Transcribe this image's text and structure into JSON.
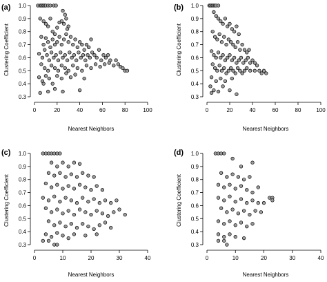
{
  "chart_data": [
    {
      "type": "scatter",
      "panel_label": "(a)",
      "xlabel": "Nearest Neighbors",
      "ylabel": "Clustering Coefficient",
      "xlim": [
        0,
        100
      ],
      "ylim": [
        0.3,
        1.0
      ],
      "xticks": [
        0,
        20,
        40,
        60,
        80,
        100
      ],
      "yticks": [
        0.3,
        0.4,
        0.5,
        0.6,
        0.7,
        0.8,
        0.9,
        1.0
      ],
      "grid": false,
      "points": [
        [
          3,
          1.0
        ],
        [
          5,
          1.0
        ],
        [
          6,
          1.0
        ],
        [
          7,
          1.0
        ],
        [
          8,
          1.0
        ],
        [
          9,
          1.0
        ],
        [
          10,
          1.0
        ],
        [
          12,
          1.0
        ],
        [
          14,
          1.0
        ],
        [
          17,
          1.0
        ],
        [
          19,
          1.0
        ],
        [
          5,
          0.9
        ],
        [
          8,
          0.88
        ],
        [
          10,
          0.86
        ],
        [
          12,
          0.84
        ],
        [
          14,
          0.9
        ],
        [
          16,
          0.8
        ],
        [
          18,
          0.78
        ],
        [
          20,
          0.83
        ],
        [
          22,
          0.87
        ],
        [
          24,
          0.88
        ],
        [
          26,
          0.86
        ],
        [
          28,
          0.9
        ],
        [
          30,
          0.84
        ],
        [
          25,
          0.96
        ],
        [
          27,
          0.93
        ],
        [
          29,
          0.82
        ],
        [
          6,
          0.76
        ],
        [
          8,
          0.7
        ],
        [
          10,
          0.75
        ],
        [
          12,
          0.72
        ],
        [
          14,
          0.68
        ],
        [
          16,
          0.74
        ],
        [
          18,
          0.7
        ],
        [
          20,
          0.72
        ],
        [
          22,
          0.76
        ],
        [
          24,
          0.7
        ],
        [
          26,
          0.74
        ],
        [
          28,
          0.78
        ],
        [
          30,
          0.72
        ],
        [
          32,
          0.76
        ],
        [
          34,
          0.7
        ],
        [
          36,
          0.74
        ],
        [
          38,
          0.68
        ],
        [
          40,
          0.72
        ],
        [
          42,
          0.7
        ],
        [
          44,
          0.66
        ],
        [
          46,
          0.7
        ],
        [
          48,
          0.68
        ],
        [
          50,
          0.74
        ],
        [
          4,
          0.63
        ],
        [
          7,
          0.6
        ],
        [
          9,
          0.66
        ],
        [
          11,
          0.62
        ],
        [
          13,
          0.58
        ],
        [
          15,
          0.64
        ],
        [
          17,
          0.6
        ],
        [
          19,
          0.62
        ],
        [
          21,
          0.58
        ],
        [
          23,
          0.64
        ],
        [
          25,
          0.6
        ],
        [
          27,
          0.62
        ],
        [
          29,
          0.58
        ],
        [
          31,
          0.64
        ],
        [
          33,
          0.6
        ],
        [
          35,
          0.62
        ],
        [
          37,
          0.58
        ],
        [
          39,
          0.64
        ],
        [
          41,
          0.6
        ],
        [
          43,
          0.62
        ],
        [
          45,
          0.58
        ],
        [
          47,
          0.62
        ],
        [
          49,
          0.6
        ],
        [
          51,
          0.64
        ],
        [
          53,
          0.62
        ],
        [
          55,
          0.6
        ],
        [
          57,
          0.66
        ],
        [
          59,
          0.58
        ],
        [
          61,
          0.62
        ],
        [
          63,
          0.6
        ],
        [
          65,
          0.62
        ],
        [
          67,
          0.58
        ],
        [
          6,
          0.55
        ],
        [
          9,
          0.52
        ],
        [
          12,
          0.5
        ],
        [
          15,
          0.54
        ],
        [
          18,
          0.52
        ],
        [
          21,
          0.5
        ],
        [
          24,
          0.54
        ],
        [
          27,
          0.52
        ],
        [
          30,
          0.5
        ],
        [
          34,
          0.54
        ],
        [
          38,
          0.52
        ],
        [
          42,
          0.5
        ],
        [
          46,
          0.54
        ],
        [
          50,
          0.52
        ],
        [
          54,
          0.55
        ],
        [
          58,
          0.53
        ],
        [
          62,
          0.55
        ],
        [
          66,
          0.56
        ],
        [
          70,
          0.54
        ],
        [
          72,
          0.58
        ],
        [
          74,
          0.55
        ],
        [
          76,
          0.53
        ],
        [
          78,
          0.52
        ],
        [
          80,
          0.5
        ],
        [
          82,
          0.5
        ],
        [
          4,
          0.45
        ],
        [
          7,
          0.42
        ],
        [
          10,
          0.46
        ],
        [
          13,
          0.44
        ],
        [
          16,
          0.4
        ],
        [
          20,
          0.46
        ],
        [
          24,
          0.44
        ],
        [
          28,
          0.48
        ],
        [
          32,
          0.45
        ],
        [
          36,
          0.47
        ],
        [
          44,
          0.44
        ],
        [
          5,
          0.33
        ],
        [
          8,
          0.4
        ],
        [
          12,
          0.34
        ],
        [
          18,
          0.36
        ],
        [
          25,
          0.34
        ],
        [
          40,
          0.35
        ]
      ]
    },
    {
      "type": "scatter",
      "panel_label": "(b)",
      "xlabel": "Nearest Neighbors",
      "ylabel": "Clustering Coefficient",
      "xlim": [
        0,
        100
      ],
      "ylim": [
        0.3,
        1.0
      ],
      "xticks": [
        0,
        20,
        40,
        60,
        80,
        100
      ],
      "yticks": [
        0.3,
        0.4,
        0.5,
        0.6,
        0.7,
        0.8,
        0.9,
        1.0
      ],
      "grid": false,
      "points": [
        [
          2,
          1.0
        ],
        [
          3,
          1.0
        ],
        [
          4,
          1.0
        ],
        [
          5,
          1.0
        ],
        [
          6,
          1.0
        ],
        [
          7,
          1.0
        ],
        [
          8,
          1.0
        ],
        [
          10,
          1.0
        ],
        [
          6,
          0.95
        ],
        [
          8,
          0.92
        ],
        [
          10,
          0.9
        ],
        [
          12,
          0.88
        ],
        [
          14,
          0.86
        ],
        [
          16,
          0.9
        ],
        [
          18,
          0.84
        ],
        [
          20,
          0.86
        ],
        [
          22,
          0.82
        ],
        [
          24,
          0.8
        ],
        [
          26,
          0.84
        ],
        [
          28,
          0.78
        ],
        [
          5,
          0.8
        ],
        [
          7,
          0.76
        ],
        [
          9,
          0.74
        ],
        [
          11,
          0.78
        ],
        [
          13,
          0.72
        ],
        [
          15,
          0.76
        ],
        [
          17,
          0.7
        ],
        [
          19,
          0.74
        ],
        [
          21,
          0.72
        ],
        [
          23,
          0.7
        ],
        [
          25,
          0.68
        ],
        [
          27,
          0.72
        ],
        [
          29,
          0.66
        ],
        [
          31,
          0.7
        ],
        [
          33,
          0.66
        ],
        [
          35,
          0.64
        ],
        [
          37,
          0.66
        ],
        [
          4,
          0.65
        ],
        [
          6,
          0.62
        ],
        [
          8,
          0.6
        ],
        [
          10,
          0.64
        ],
        [
          12,
          0.6
        ],
        [
          14,
          0.62
        ],
        [
          16,
          0.58
        ],
        [
          18,
          0.6
        ],
        [
          20,
          0.62
        ],
        [
          22,
          0.58
        ],
        [
          24,
          0.6
        ],
        [
          26,
          0.56
        ],
        [
          28,
          0.58
        ],
        [
          30,
          0.6
        ],
        [
          32,
          0.56
        ],
        [
          34,
          0.58
        ],
        [
          36,
          0.6
        ],
        [
          38,
          0.56
        ],
        [
          40,
          0.58
        ],
        [
          42,
          0.56
        ],
        [
          44,
          0.54
        ],
        [
          5,
          0.55
        ],
        [
          7,
          0.52
        ],
        [
          9,
          0.5
        ],
        [
          11,
          0.54
        ],
        [
          13,
          0.5
        ],
        [
          15,
          0.52
        ],
        [
          17,
          0.48
        ],
        [
          19,
          0.5
        ],
        [
          21,
          0.52
        ],
        [
          23,
          0.5
        ],
        [
          25,
          0.48
        ],
        [
          27,
          0.52
        ],
        [
          29,
          0.5
        ],
        [
          31,
          0.48
        ],
        [
          33,
          0.5
        ],
        [
          35,
          0.52
        ],
        [
          38,
          0.5
        ],
        [
          42,
          0.5
        ],
        [
          46,
          0.5
        ],
        [
          48,
          0.48
        ],
        [
          50,
          0.5
        ],
        [
          52,
          0.48
        ],
        [
          4,
          0.45
        ],
        [
          8,
          0.42
        ],
        [
          12,
          0.44
        ],
        [
          16,
          0.42
        ],
        [
          22,
          0.44
        ],
        [
          3,
          0.38
        ],
        [
          4,
          0.33
        ],
        [
          6,
          0.35
        ],
        [
          10,
          0.34
        ],
        [
          14,
          0.38
        ],
        [
          20,
          0.35
        ],
        [
          26,
          0.32
        ]
      ]
    },
    {
      "type": "scatter",
      "panel_label": "(c)",
      "xlabel": "Nearest Neighbors",
      "ylabel": "Clustering Coefficient",
      "xlim": [
        0,
        40
      ],
      "ylim": [
        0.3,
        1.0
      ],
      "xticks": [
        0,
        10,
        20,
        30,
        40
      ],
      "yticks": [
        0.3,
        0.4,
        0.5,
        0.6,
        0.7,
        0.8,
        0.9,
        1.0
      ],
      "grid": false,
      "points": [
        [
          3,
          1.0
        ],
        [
          4,
          1.0
        ],
        [
          5,
          1.0
        ],
        [
          6,
          1.0
        ],
        [
          7,
          1.0
        ],
        [
          8,
          1.0
        ],
        [
          9,
          1.0
        ],
        [
          6,
          0.93
        ],
        [
          8,
          0.9
        ],
        [
          10,
          0.93
        ],
        [
          12,
          0.9
        ],
        [
          14,
          0.93
        ],
        [
          16,
          0.92
        ],
        [
          5,
          0.85
        ],
        [
          7,
          0.83
        ],
        [
          9,
          0.85
        ],
        [
          11,
          0.82
        ],
        [
          13,
          0.84
        ],
        [
          15,
          0.82
        ],
        [
          17,
          0.85
        ],
        [
          19,
          0.83
        ],
        [
          21,
          0.82
        ],
        [
          4,
          0.77
        ],
        [
          6,
          0.74
        ],
        [
          8,
          0.76
        ],
        [
          10,
          0.73
        ],
        [
          12,
          0.75
        ],
        [
          14,
          0.73
        ],
        [
          16,
          0.76
        ],
        [
          18,
          0.74
        ],
        [
          20,
          0.72
        ],
        [
          22,
          0.75
        ],
        [
          24,
          0.72
        ],
        [
          3,
          0.66
        ],
        [
          5,
          0.64
        ],
        [
          7,
          0.67
        ],
        [
          9,
          0.63
        ],
        [
          11,
          0.66
        ],
        [
          13,
          0.64
        ],
        [
          15,
          0.62
        ],
        [
          17,
          0.66
        ],
        [
          19,
          0.63
        ],
        [
          21,
          0.65
        ],
        [
          23,
          0.62
        ],
        [
          25,
          0.64
        ],
        [
          27,
          0.62
        ],
        [
          29,
          0.64
        ],
        [
          4,
          0.58
        ],
        [
          6,
          0.55
        ],
        [
          8,
          0.57
        ],
        [
          10,
          0.54
        ],
        [
          12,
          0.56
        ],
        [
          14,
          0.53
        ],
        [
          16,
          0.57
        ],
        [
          18,
          0.55
        ],
        [
          20,
          0.53
        ],
        [
          22,
          0.56
        ],
        [
          24,
          0.54
        ],
        [
          26,
          0.52
        ],
        [
          28,
          0.55
        ],
        [
          30,
          0.57
        ],
        [
          32,
          0.53
        ],
        [
          5,
          0.48
        ],
        [
          7,
          0.45
        ],
        [
          9,
          0.47
        ],
        [
          11,
          0.44
        ],
        [
          13,
          0.46
        ],
        [
          15,
          0.43
        ],
        [
          17,
          0.46
        ],
        [
          19,
          0.44
        ],
        [
          21,
          0.42
        ],
        [
          23,
          0.45
        ],
        [
          25,
          0.47
        ],
        [
          27,
          0.43
        ],
        [
          4,
          0.38
        ],
        [
          6,
          0.36
        ],
        [
          8,
          0.39
        ],
        [
          10,
          0.37
        ],
        [
          12,
          0.35
        ],
        [
          14,
          0.38
        ],
        [
          18,
          0.37
        ],
        [
          22,
          0.38
        ],
        [
          3,
          0.33
        ],
        [
          5,
          0.33
        ],
        [
          7,
          0.3
        ],
        [
          8,
          0.3
        ]
      ]
    },
    {
      "type": "scatter",
      "panel_label": "(d)",
      "xlabel": "Nearest Neighbors",
      "ylabel": "Clustering Coefficient",
      "xlim": [
        0,
        40
      ],
      "ylim": [
        0.3,
        1.0
      ],
      "xticks": [
        0,
        10,
        20,
        30,
        40
      ],
      "yticks": [
        0.3,
        0.4,
        0.5,
        0.6,
        0.7,
        0.8,
        0.9,
        1.0
      ],
      "grid": false,
      "points": [
        [
          3,
          1.0
        ],
        [
          4,
          1.0
        ],
        [
          5,
          1.0
        ],
        [
          6,
          1.0
        ],
        [
          9,
          0.96
        ],
        [
          12,
          0.9
        ],
        [
          16,
          0.93
        ],
        [
          5,
          0.85
        ],
        [
          7,
          0.82
        ],
        [
          9,
          0.84
        ],
        [
          11,
          0.82
        ],
        [
          13,
          0.8
        ],
        [
          15,
          0.82
        ],
        [
          4,
          0.76
        ],
        [
          6,
          0.74
        ],
        [
          8,
          0.76
        ],
        [
          10,
          0.73
        ],
        [
          12,
          0.75
        ],
        [
          14,
          0.72
        ],
        [
          16,
          0.7
        ],
        [
          18,
          0.74
        ],
        [
          4,
          0.66
        ],
        [
          6,
          0.64
        ],
        [
          8,
          0.67
        ],
        [
          10,
          0.63
        ],
        [
          12,
          0.65
        ],
        [
          14,
          0.62
        ],
        [
          16,
          0.64
        ],
        [
          18,
          0.62
        ],
        [
          20,
          0.62
        ],
        [
          22,
          0.66
        ],
        [
          23,
          0.66
        ],
        [
          23,
          0.64
        ],
        [
          5,
          0.58
        ],
        [
          7,
          0.55
        ],
        [
          9,
          0.57
        ],
        [
          11,
          0.54
        ],
        [
          13,
          0.56
        ],
        [
          15,
          0.53
        ],
        [
          17,
          0.56
        ],
        [
          19,
          0.55
        ],
        [
          4,
          0.48
        ],
        [
          6,
          0.46
        ],
        [
          8,
          0.48
        ],
        [
          10,
          0.45
        ],
        [
          12,
          0.47
        ],
        [
          14,
          0.44
        ],
        [
          16,
          0.46
        ],
        [
          4,
          0.38
        ],
        [
          6,
          0.36
        ],
        [
          8,
          0.38
        ],
        [
          10,
          0.36
        ],
        [
          13,
          0.35
        ],
        [
          4,
          0.33
        ],
        [
          6,
          0.33
        ],
        [
          7,
          0.3
        ]
      ]
    }
  ]
}
